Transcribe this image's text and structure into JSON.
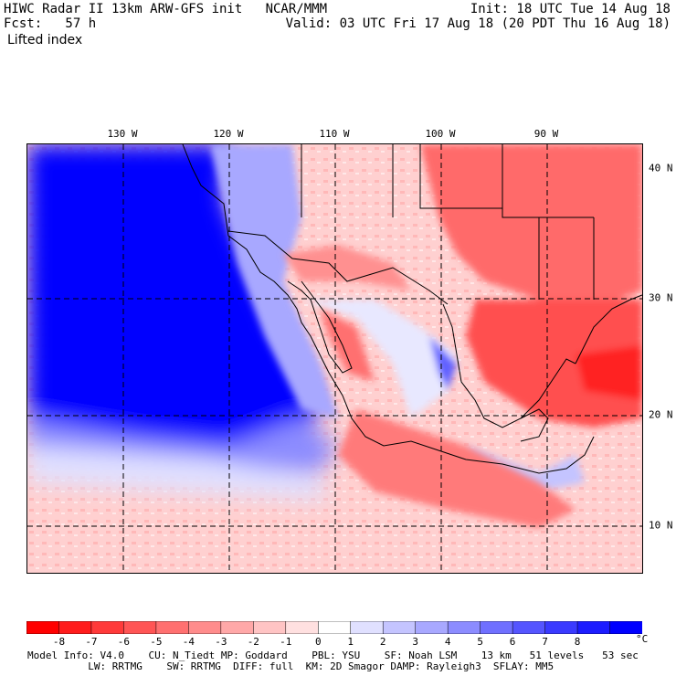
{
  "header": {
    "left_line1": "HIWC Radar II 13km ARW-GFS init   NCAR/MMM",
    "left_line2": "Fcst:   57 h",
    "left_line3": "Lifted index",
    "right_line1": "Init: 18 UTC Tue 14 Aug 18",
    "right_line2": "Valid: 03 UTC Fri 17 Aug 18 (20 PDT Thu 16 Aug 18)"
  },
  "map": {
    "lon_labels": [
      "130 W",
      "120 W",
      "110 W",
      "100 W",
      "90 W"
    ],
    "lat_labels": [
      "40 N",
      "30 N",
      "20 N",
      "10 N"
    ],
    "grid": "dashed lat/lon lines",
    "field": "Lifted index"
  },
  "colorbar": {
    "labels": [
      "-8",
      "-7",
      "-6",
      "-5",
      "-4",
      "-3",
      "-2",
      "-1",
      "0",
      "1",
      "2",
      "3",
      "4",
      "5",
      "6",
      "7",
      "8"
    ],
    "unit": "°C",
    "colors": [
      "#ff0000",
      "#ff1c1c",
      "#ff3a3a",
      "#ff5555",
      "#ff7070",
      "#ff8c8c",
      "#ffa8a8",
      "#ffc4c4",
      "#ffe0e0",
      "#ffffff",
      "#e0e0ff",
      "#c4c4ff",
      "#a8a8ff",
      "#8c8cff",
      "#7070ff",
      "#5555ff",
      "#3a3aff",
      "#1c1cff",
      "#0000ff"
    ]
  },
  "footer": {
    "line1": "Model Info: V4.0    CU: N_Tiedt MP: Goddard    PBL: YSU    SF: Noah LSM    13 km   51 levels   53 sec",
    "line2": "          LW: RRTMG    SW: RRTMG  DIFF: full  KM: 2D Smagor DAMP: Rayleigh3  SFLAY: MM5"
  }
}
